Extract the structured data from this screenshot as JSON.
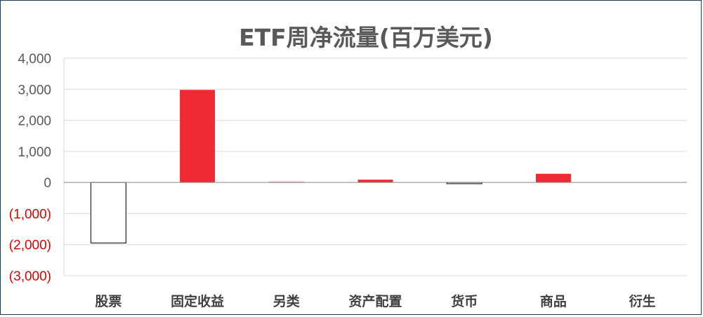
{
  "chart_data": {
    "type": "bar",
    "title": "ETF周净流量(百万美元)",
    "categories": [
      "股票",
      "固定收益",
      "另类",
      "资产配置",
      "货币",
      "商品",
      "衍生"
    ],
    "values": [
      -1950,
      2980,
      20,
      90,
      -40,
      280,
      0
    ],
    "ylim": [
      -3000,
      4000
    ],
    "yticks": [
      4000,
      3000,
      2000,
      1000,
      0,
      -1000,
      -2000,
      -3000
    ],
    "ytick_labels": [
      "4,000",
      "3,000",
      "2,000",
      "1,000",
      "0",
      "(1,000)",
      "(2,000)",
      "(3,000)"
    ],
    "grid": true,
    "legend": "none",
    "colors": {
      "positive_fill": "#ee2a35",
      "negative_fill": "#ffffff",
      "negative_stroke": "#000000",
      "negative_label": "#e00000",
      "positive_label": "#595959",
      "grid": "#d9d9d9",
      "axis": "#888888"
    }
  }
}
